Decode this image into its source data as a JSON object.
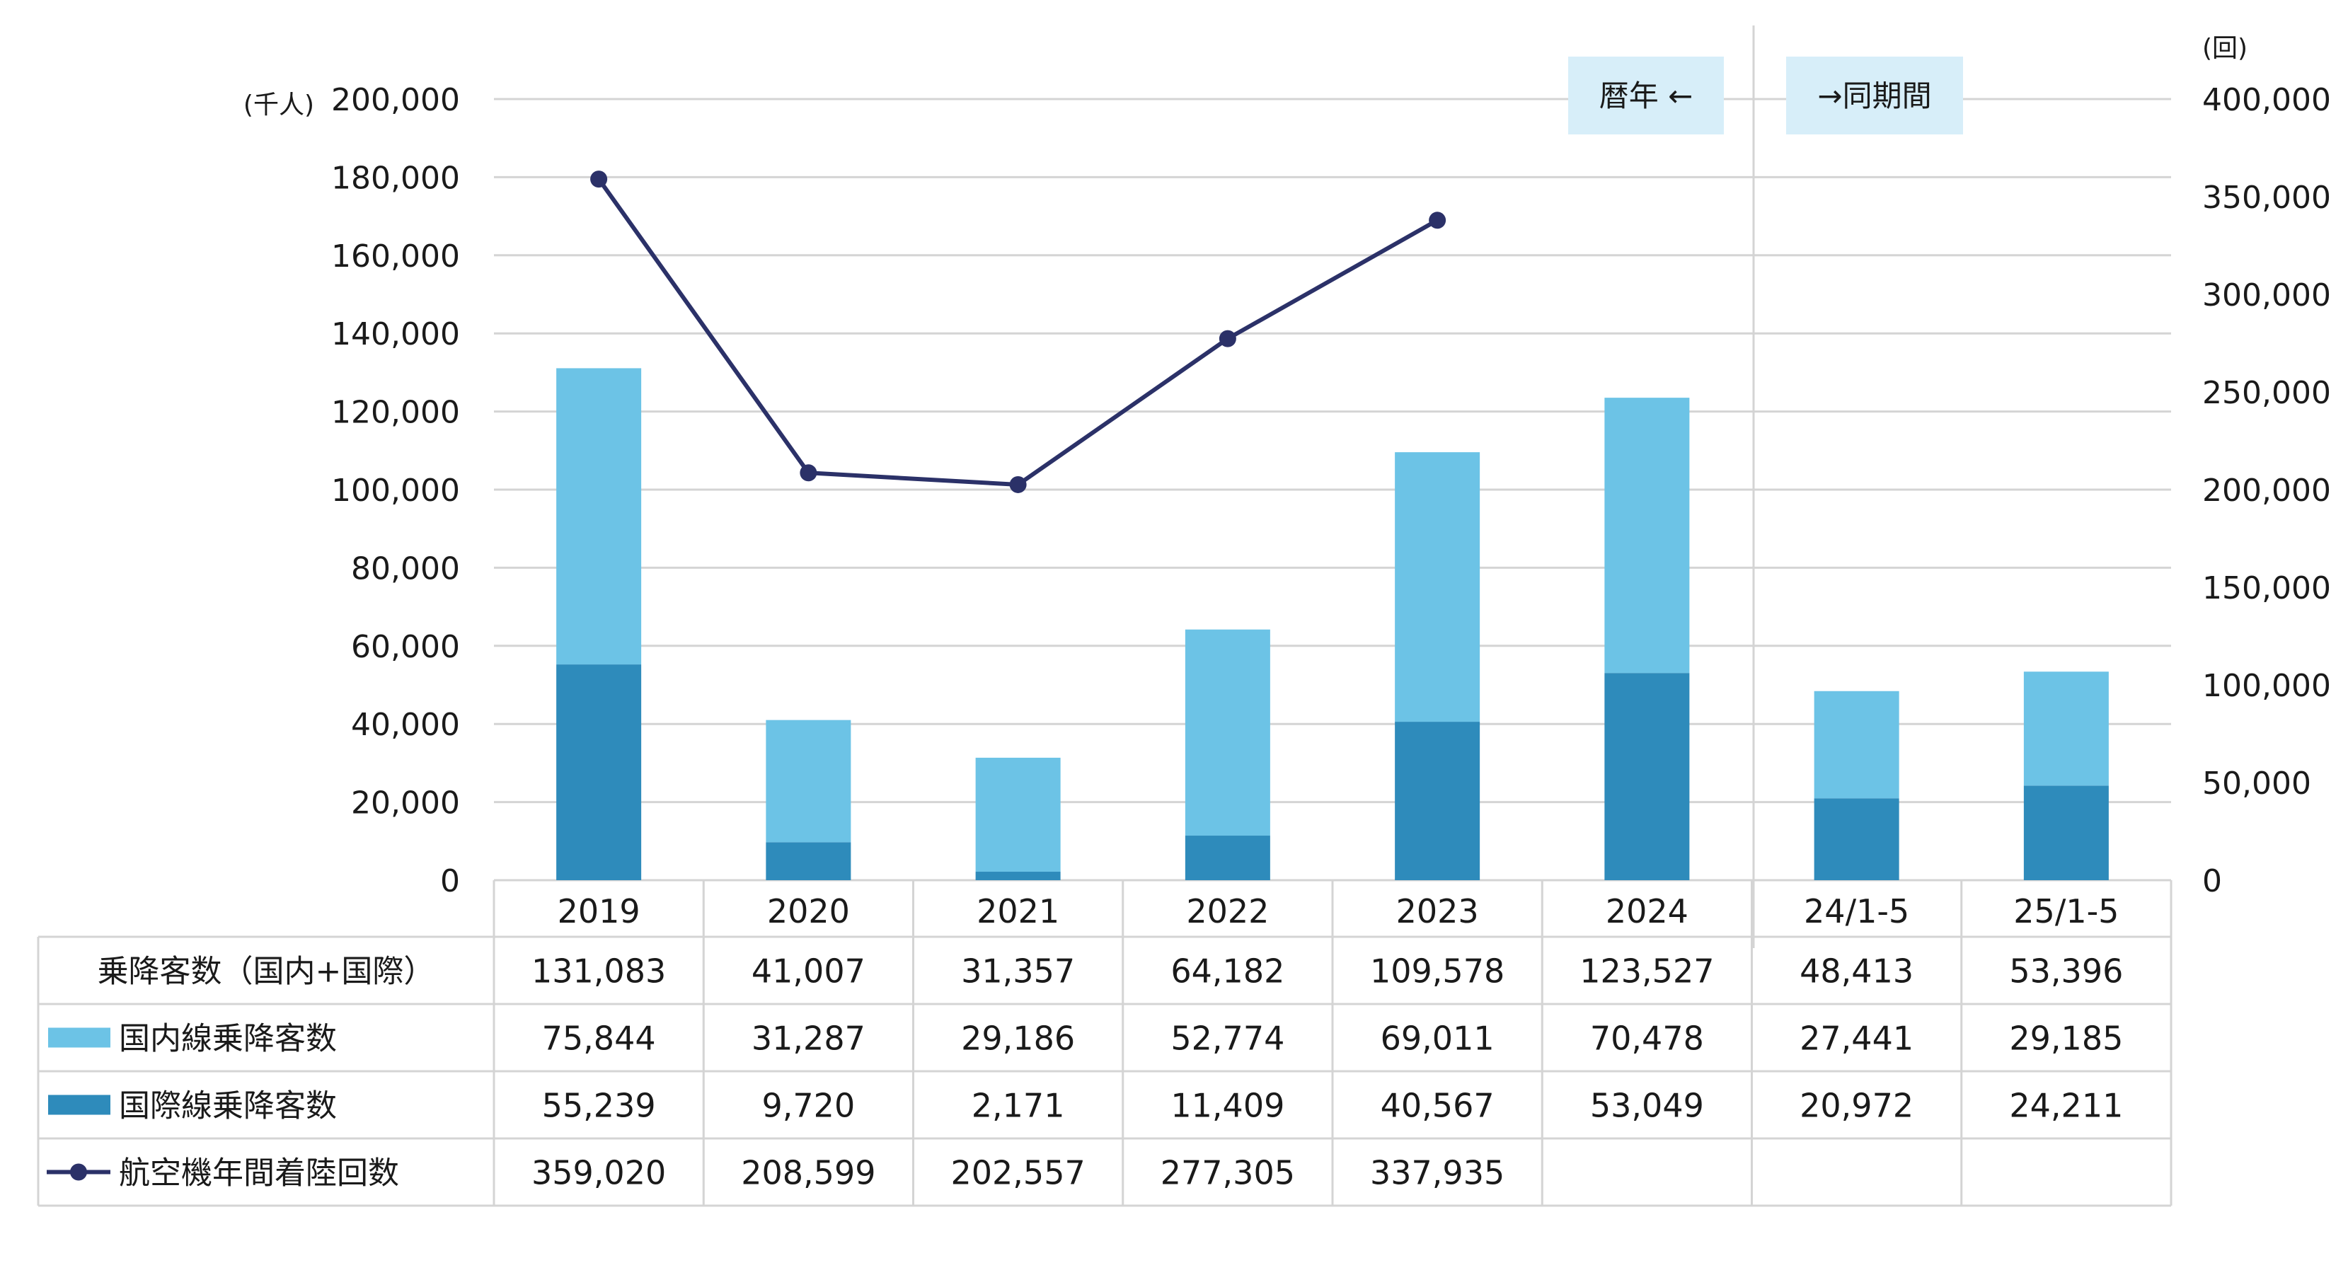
{
  "units": {
    "left": "(千人)",
    "right": "(回)"
  },
  "period_boxes": {
    "calendar": "暦年 ←",
    "same_period": "→同期間"
  },
  "colors": {
    "domestic": "#6cc3e6",
    "international": "#2e8bbb",
    "flights": "#2b3168",
    "box_bg": "#d7eef9",
    "grid": "#d4d4d4"
  },
  "chart_data": {
    "type": "bar",
    "stacked": true,
    "categories": [
      "2019",
      "2020",
      "2021",
      "2022",
      "2023",
      "2024",
      "24/1-5",
      "25/1-5"
    ],
    "y_left_range": [
      0,
      200000
    ],
    "y_left_ticks": [
      "0",
      "20,000",
      "40,000",
      "60,000",
      "80,000",
      "100,000",
      "120,000",
      "140,000",
      "160,000",
      "180,000",
      "200,000"
    ],
    "y_right_range": [
      0,
      400000
    ],
    "y_right_ticks": [
      "0",
      "50,000",
      "100,000",
      "150,000",
      "200,000",
      "250,000",
      "300,000",
      "350,000",
      "400,000"
    ],
    "grid": true,
    "series": [
      {
        "name": "国際線乗降客数",
        "type": "bar",
        "axis": "left",
        "values": [
          55239,
          9720,
          2171,
          11409,
          40567,
          53049,
          20972,
          24211
        ],
        "labels": [
          "55,239",
          "9,720",
          "2,171",
          "11,409",
          "40,567",
          "53,049",
          "20,972",
          "24,211"
        ]
      },
      {
        "name": "国内線乗降客数",
        "type": "bar",
        "axis": "left",
        "values": [
          75844,
          31287,
          29186,
          52774,
          69011,
          70478,
          27441,
          29185
        ],
        "labels": [
          "75,844",
          "31,287",
          "29,186",
          "52,774",
          "69,011",
          "70,478",
          "27,441",
          "29,185"
        ]
      },
      {
        "name": "航空機年間着陸回数",
        "type": "line",
        "axis": "right",
        "values": [
          359020,
          208599,
          202557,
          277305,
          337935,
          null,
          null,
          null
        ],
        "labels": [
          "359,020",
          "208,599",
          "202,557",
          "277,305",
          "337,935",
          "",
          "",
          ""
        ]
      }
    ],
    "table": {
      "total_label": "乗降客数（国内+国際）",
      "totals": [
        "131,083",
        "41,007",
        "31,357",
        "64,182",
        "109,578",
        "123,527",
        "48,413",
        "53,396"
      ]
    }
  }
}
